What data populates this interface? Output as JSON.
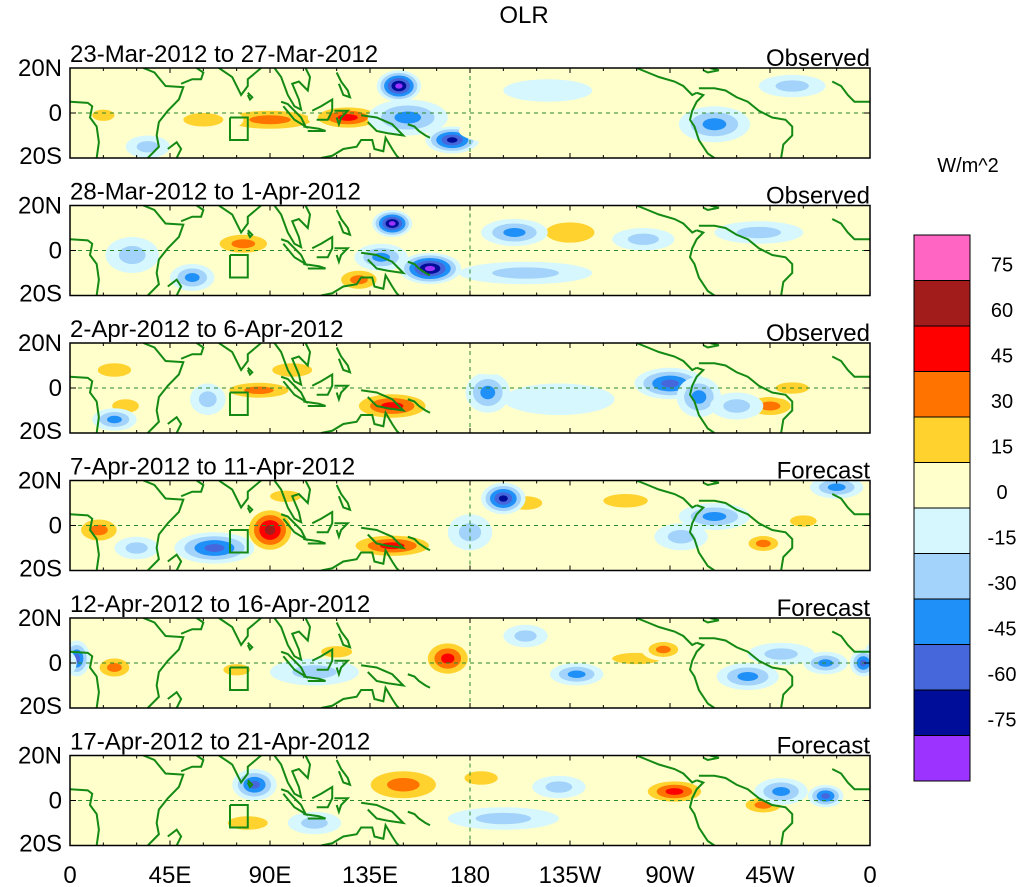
{
  "chart_data": {
    "type": "heatmap",
    "title": "OLR",
    "units": "W/m^2",
    "x_ticks": [
      "0",
      "45E",
      "90E",
      "135E",
      "180",
      "135W",
      "90W",
      "45W",
      "0"
    ],
    "x_range_deg": [
      0,
      360
    ],
    "y_ticks": [
      "20N",
      "0",
      "20S"
    ],
    "y_range_deg": [
      -20,
      20
    ],
    "colorbar": {
      "levels": [
        "75",
        "60",
        "45",
        "30",
        "15",
        "0",
        "-15",
        "-30",
        "-45",
        "-60",
        "-75"
      ],
      "colors": [
        "#ff66c4",
        "#a31c1c",
        "#ff0000",
        "#ff7300",
        "#ffd22e",
        "#ffffcc",
        "#d5f7fd",
        "#a3d2fa",
        "#1f90f7",
        "#4666dc",
        "#000d99",
        "#9d33ff"
      ]
    },
    "panels": [
      {
        "label": "23-Mar-2012 to 27-Mar-2012",
        "type": "Observed",
        "blobs": [
          [
            90,
            -3,
            28,
            6,
            40
          ],
          [
            125,
            -2,
            18,
            6,
            55
          ],
          [
            60,
            -3,
            18,
            6,
            30
          ],
          [
            15,
            -1,
            10,
            5,
            25
          ],
          [
            148,
            12,
            10,
            7,
            -80
          ],
          [
            172,
            -12,
            12,
            6,
            -75
          ],
          [
            152,
            -2,
            18,
            8,
            -45
          ],
          [
            250,
            6,
            40,
            9,
            15
          ],
          [
            200,
            -8,
            25,
            6,
            15
          ],
          [
            290,
            -5,
            16,
            8,
            -40
          ],
          [
            35,
            -15,
            10,
            5,
            -30
          ],
          [
            215,
            10,
            20,
            5,
            -15
          ],
          [
            325,
            12,
            15,
            5,
            -20
          ]
        ]
      },
      {
        "label": "28-Mar-2012 to 1-Apr-2012",
        "type": "Observed",
        "blobs": [
          [
            78,
            3,
            16,
            6,
            35
          ],
          [
            130,
            -13,
            12,
            6,
            45
          ],
          [
            225,
            8,
            22,
            9,
            20
          ],
          [
            300,
            -3,
            18,
            5,
            15
          ],
          [
            145,
            12,
            9,
            6,
            -80
          ],
          [
            162,
            -8,
            14,
            7,
            -80
          ],
          [
            140,
            -3,
            12,
            6,
            -40
          ],
          [
            200,
            8,
            15,
            6,
            -45
          ],
          [
            258,
            5,
            14,
            5,
            -30
          ],
          [
            28,
            -2,
            12,
            8,
            -30
          ],
          [
            55,
            -12,
            10,
            6,
            -45
          ],
          [
            310,
            8,
            20,
            5,
            -20
          ],
          [
            205,
            -10,
            30,
            5,
            -20
          ]
        ]
      },
      {
        "label": "2-Apr-2012 to 6-Apr-2012",
        "type": "Observed",
        "blobs": [
          [
            85,
            -1,
            20,
            5,
            35
          ],
          [
            145,
            -8,
            20,
            7,
            55
          ],
          [
            20,
            8,
            15,
            6,
            25
          ],
          [
            25,
            -8,
            12,
            6,
            30
          ],
          [
            315,
            -8,
            14,
            6,
            35
          ],
          [
            325,
            0,
            15,
            5,
            25
          ],
          [
            270,
            2,
            16,
            7,
            -55
          ],
          [
            283,
            -4,
            10,
            9,
            -45
          ],
          [
            188,
            -2,
            10,
            9,
            -35
          ],
          [
            20,
            -14,
            10,
            5,
            -45
          ],
          [
            62,
            -5,
            8,
            7,
            -30
          ],
          [
            300,
            -8,
            12,
            6,
            -30
          ],
          [
            220,
            -5,
            25,
            7,
            -15
          ],
          [
            100,
            8,
            18,
            6,
            20
          ],
          [
            190,
            12,
            20,
            6,
            15
          ]
        ]
      },
      {
        "label": "7-Apr-2012 to 11-Apr-2012",
        "type": "Forecast",
        "blobs": [
          [
            90,
            -2,
            12,
            11,
            65
          ],
          [
            145,
            -9,
            22,
            6,
            55
          ],
          [
            13,
            -2,
            12,
            7,
            35
          ],
          [
            97,
            13,
            14,
            5,
            25
          ],
          [
            205,
            10,
            15,
            6,
            20
          ],
          [
            250,
            11,
            20,
            6,
            25
          ],
          [
            312,
            -8,
            10,
            5,
            35
          ],
          [
            330,
            2,
            12,
            5,
            20
          ],
          [
            65,
            -10,
            18,
            7,
            -55
          ],
          [
            195,
            12,
            10,
            7,
            -65
          ],
          [
            290,
            4,
            16,
            6,
            -45
          ],
          [
            275,
            -5,
            12,
            6,
            -30
          ],
          [
            345,
            17,
            12,
            5,
            -45
          ],
          [
            180,
            -3,
            10,
            8,
            -30
          ],
          [
            30,
            -10,
            10,
            5,
            -30
          ]
        ]
      },
      {
        "label": "12-Apr-2012 to 16-Apr-2012",
        "type": "Forecast",
        "blobs": [
          [
            170,
            2,
            12,
            9,
            60
          ],
          [
            20,
            -2,
            10,
            6,
            35
          ],
          [
            75,
            -3,
            12,
            5,
            30
          ],
          [
            120,
            5,
            14,
            5,
            30
          ],
          [
            255,
            2,
            22,
            5,
            25
          ],
          [
            267,
            6,
            10,
            5,
            40
          ],
          [
            228,
            -5,
            12,
            5,
            -40
          ],
          [
            305,
            -6,
            14,
            6,
            -35
          ],
          [
            320,
            4,
            15,
            5,
            -30
          ],
          [
            3,
            2,
            6,
            8,
            -60
          ],
          [
            357,
            0,
            6,
            6,
            -50
          ],
          [
            340,
            0,
            10,
            5,
            -35
          ],
          [
            205,
            12,
            10,
            5,
            -30
          ],
          [
            110,
            -4,
            20,
            6,
            -30
          ]
        ]
      },
      {
        "label": "17-Apr-2012 to 21-Apr-2012",
        "type": "Forecast",
        "blobs": [
          [
            150,
            7,
            22,
            9,
            35
          ],
          [
            185,
            10,
            15,
            6,
            20
          ],
          [
            272,
            4,
            16,
            6,
            55
          ],
          [
            312,
            -2,
            12,
            5,
            45
          ],
          [
            240,
            8,
            18,
            5,
            15
          ],
          [
            80,
            -10,
            18,
            6,
            20
          ],
          [
            20,
            5,
            12,
            6,
            15
          ],
          [
            83,
            7,
            10,
            7,
            -50
          ],
          [
            320,
            4,
            12,
            6,
            -35
          ],
          [
            340,
            2,
            8,
            5,
            -50
          ],
          [
            220,
            6,
            12,
            5,
            -30
          ],
          [
            110,
            -10,
            12,
            5,
            -25
          ],
          [
            195,
            -8,
            25,
            5,
            -20
          ]
        ]
      }
    ]
  }
}
